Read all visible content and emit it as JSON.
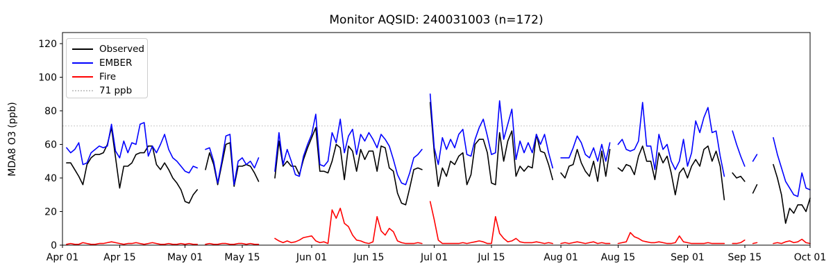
{
  "title": "Monitor AQSID: 240031003 (n=172)",
  "legend": {
    "items": [
      {
        "label": "Observed",
        "color": "#000000",
        "line_style": "solid"
      },
      {
        "label": "EMBER",
        "color": "#0000ff",
        "line_style": "solid"
      },
      {
        "label": "Fire",
        "color": "#ff0000",
        "line_style": "solid"
      },
      {
        "label": "71 ppb",
        "color": "#c8c8c8",
        "line_style": "dotted"
      }
    ]
  },
  "chart_data": {
    "type": "line",
    "title": "Monitor AQSID: 240031003 (n=172)",
    "xlabel": "",
    "ylabel": "MDA8 O3 (ppb)",
    "x_start": "Apr 01",
    "x_end": "Oct 01",
    "x_unit": "daily values, index = days since Apr 01",
    "x_total_days": 183,
    "ylim": [
      0,
      126.6
    ],
    "y_ticks": [
      0,
      20,
      40,
      60,
      80,
      100,
      120
    ],
    "x_tick_labels": [
      "Apr 01",
      "Apr 15",
      "May 01",
      "May 15",
      "Jun 01",
      "Jun 15",
      "Jul 01",
      "Jul 15",
      "Aug 01",
      "Aug 15",
      "Sep 01",
      "Sep 15",
      "Oct 01"
    ],
    "x_tick_days": [
      0,
      14,
      30,
      44,
      61,
      75,
      91,
      105,
      122,
      136,
      153,
      167,
      183
    ],
    "grid": false,
    "legend_position": "upper left",
    "reference_line": {
      "label": "71 ppb",
      "value": 71,
      "color": "#c8c8c8",
      "style": "dotted"
    },
    "series": [
      {
        "name": "Observed",
        "color": "#000000",
        "values": [
          null,
          49,
          49,
          45,
          41,
          36,
          48,
          52,
          54,
          54,
          55,
          60,
          70,
          52,
          34,
          47,
          47,
          49,
          54,
          55,
          55,
          59,
          59,
          48,
          45,
          49,
          45,
          40,
          37,
          33,
          26,
          25,
          30,
          33,
          null,
          45,
          55,
          48,
          36,
          48,
          60,
          61,
          35,
          47,
          47,
          48,
          47,
          43,
          38,
          null,
          null,
          null,
          40,
          62,
          47,
          50,
          47,
          47,
          42,
          51,
          58,
          64,
          70,
          44,
          44,
          43,
          50,
          60,
          58,
          39,
          59,
          56,
          44,
          57,
          51,
          56,
          56,
          44,
          59,
          58,
          46,
          44,
          31,
          25,
          24,
          34,
          45,
          46,
          45,
          null,
          85,
          55,
          35,
          46,
          41,
          50,
          48,
          53,
          55,
          36,
          42,
          60,
          63,
          63,
          55,
          37,
          36,
          67,
          50,
          62,
          68,
          41,
          47,
          44,
          47,
          46,
          66,
          56,
          55,
          48,
          39,
          null,
          43,
          40,
          47,
          48,
          57,
          49,
          44,
          41,
          50,
          38,
          56,
          41,
          57,
          null,
          46,
          44,
          48,
          47,
          42,
          53,
          59,
          50,
          50,
          39,
          55,
          49,
          53,
          43,
          30,
          43,
          46,
          40,
          47,
          51,
          47,
          57,
          59,
          50,
          56,
          47,
          27,
          null,
          43,
          40,
          41,
          38,
          null,
          31,
          36,
          null,
          null,
          null,
          48,
          40,
          30,
          13,
          22,
          19,
          24,
          24,
          20,
          28
        ]
      },
      {
        "name": "EMBER",
        "color": "#0000ff",
        "values": [
          null,
          58,
          55,
          57,
          61,
          48,
          49,
          55,
          57,
          59,
          58,
          59,
          72,
          56,
          52,
          62,
          55,
          61,
          60,
          72,
          73,
          53,
          59,
          55,
          60,
          66,
          57,
          52,
          50,
          47,
          44,
          43,
          47,
          46,
          null,
          57,
          58,
          50,
          37,
          50,
          65,
          66,
          36,
          50,
          52,
          48,
          50,
          46,
          52,
          null,
          null,
          null,
          44,
          67,
          48,
          57,
          50,
          42,
          41,
          53,
          60,
          66,
          78,
          48,
          47,
          50,
          67,
          61,
          75,
          55,
          65,
          69,
          54,
          66,
          62,
          67,
          63,
          58,
          66,
          63,
          59,
          51,
          42,
          37,
          36,
          43,
          52,
          54,
          57,
          null,
          90,
          58,
          48,
          64,
          57,
          63,
          58,
          66,
          69,
          54,
          53,
          63,
          70,
          75,
          65,
          54,
          55,
          86,
          63,
          72,
          81,
          51,
          62,
          55,
          61,
          55,
          66,
          60,
          66,
          55,
          46,
          null,
          52,
          52,
          52,
          58,
          65,
          61,
          54,
          52,
          58,
          50,
          60,
          50,
          61,
          null,
          60,
          63,
          57,
          56,
          57,
          62,
          85,
          59,
          59,
          45,
          66,
          57,
          60,
          50,
          45,
          50,
          63,
          47,
          55,
          74,
          67,
          76,
          82,
          67,
          68,
          53,
          41,
          null,
          68,
          60,
          53,
          47,
          null,
          50,
          54,
          null,
          null,
          null,
          64,
          54,
          46,
          38,
          34,
          30,
          29,
          43,
          34,
          33
        ]
      },
      {
        "name": "Fire",
        "color": "#ff0000",
        "values": [
          null,
          0.5,
          1,
          0.5,
          0.5,
          1.5,
          1,
          0.5,
          0.5,
          1,
          1,
          1.5,
          2,
          1.5,
          1,
          0.5,
          1,
          1,
          1.5,
          1,
          0.5,
          1,
          1.5,
          1,
          0.5,
          0.5,
          1,
          0.5,
          0.5,
          1,
          0.5,
          1,
          0.5,
          0.5,
          null,
          0.5,
          1,
          0.5,
          0.5,
          1,
          1,
          0.5,
          0.5,
          1,
          1,
          0.5,
          1,
          0.5,
          0.5,
          null,
          null,
          null,
          4,
          2.5,
          1.5,
          2.5,
          1.5,
          2,
          3,
          4.5,
          5,
          5.5,
          2.5,
          1.5,
          2,
          1,
          21,
          16,
          22,
          13,
          11,
          6,
          3,
          2.5,
          1.5,
          1,
          2,
          17,
          8.5,
          6,
          10,
          8,
          2.5,
          1.5,
          1,
          1,
          1,
          1.5,
          1,
          null,
          26,
          15,
          3,
          1,
          1,
          1,
          1,
          1,
          1.5,
          1,
          1.5,
          2,
          2.5,
          2,
          1,
          1,
          17,
          7,
          4,
          2,
          2.5,
          4,
          2,
          1.5,
          1.5,
          1.5,
          2,
          1.5,
          1,
          1.5,
          1,
          null,
          1,
          1.5,
          1,
          1.5,
          2,
          1.5,
          1,
          1.5,
          2,
          1,
          1.5,
          1,
          1,
          null,
          1,
          1.5,
          2,
          7.5,
          5,
          4,
          2.5,
          2,
          1.5,
          1.5,
          2,
          1.5,
          1,
          1,
          1.5,
          5.5,
          2,
          1.5,
          1,
          1,
          1,
          1,
          1.5,
          1,
          1,
          1,
          1,
          null,
          1,
          1,
          1.5,
          3,
          null,
          1,
          1.5,
          null,
          null,
          null,
          1,
          1.5,
          1,
          2,
          2.5,
          1.5,
          2,
          3.5,
          1.5,
          1
        ]
      }
    ]
  }
}
